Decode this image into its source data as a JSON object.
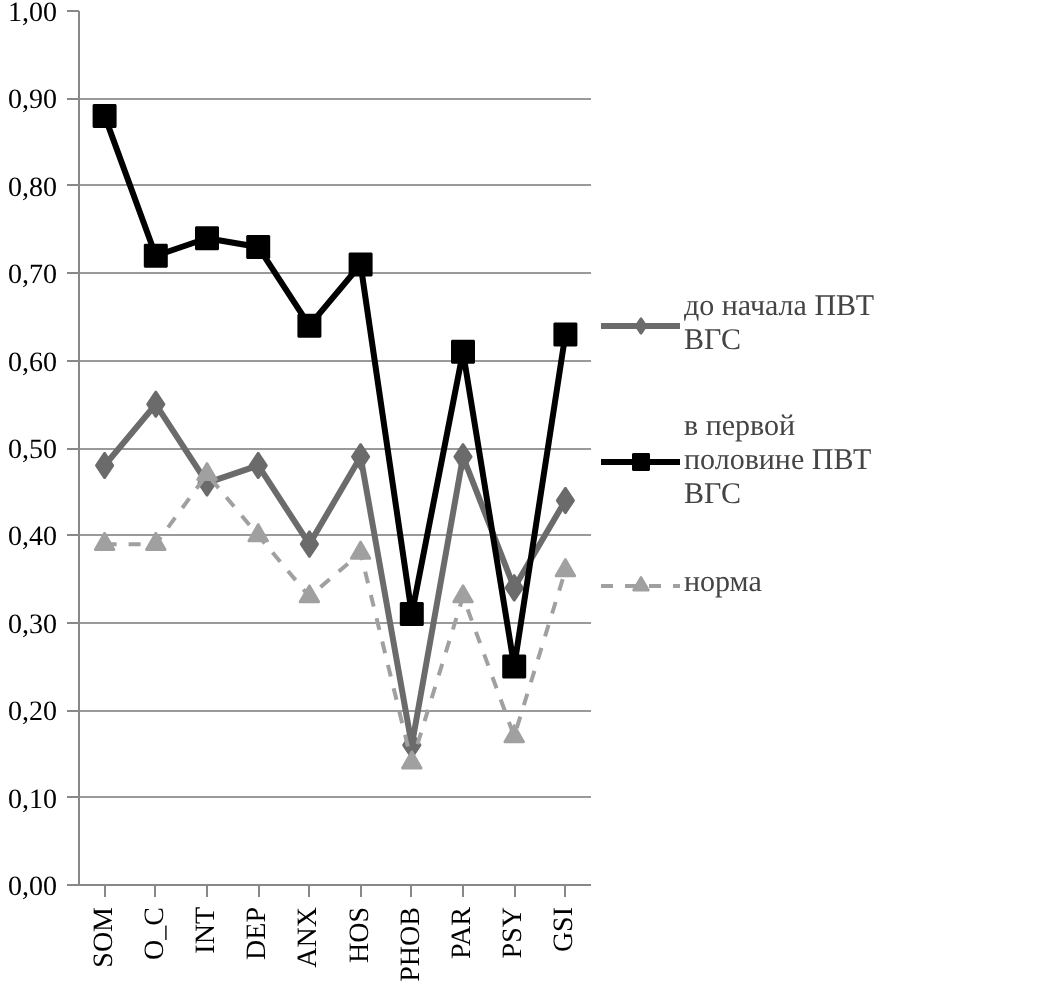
{
  "chart_data": {
    "type": "line",
    "categories": [
      "SOM",
      "O_C",
      "INT",
      "DEP",
      "ANX",
      "HOS",
      "PHOB",
      "PAR",
      "PSY",
      "GSI"
    ],
    "ylim": [
      0,
      1
    ],
    "yticks": [
      {
        "value": 0,
        "label": "0,00"
      },
      {
        "value": 0.1,
        "label": "0,10"
      },
      {
        "value": 0.2,
        "label": "0,20"
      },
      {
        "value": 0.3,
        "label": "0,30"
      },
      {
        "value": 0.4,
        "label": "0,40"
      },
      {
        "value": 0.5,
        "label": "0,50"
      },
      {
        "value": 0.6,
        "label": "0,60"
      },
      {
        "value": 0.7,
        "label": "0,70"
      },
      {
        "value": 0.8,
        "label": "0,80"
      },
      {
        "value": 0.9,
        "label": "0,90"
      },
      {
        "value": 1,
        "label": "1,00"
      }
    ],
    "grid": "y",
    "legend": "right",
    "series": [
      {
        "name": "до начала ПВТ ВГС",
        "color": "#6b6b6b",
        "marker": "diamond",
        "line_style": "solid",
        "values": [
          0.48,
          0.55,
          0.46,
          0.48,
          0.39,
          0.49,
          0.16,
          0.49,
          0.34,
          0.44
        ]
      },
      {
        "name": "в первой половине ПВТ ВГС",
        "color": "#000000",
        "marker": "square",
        "line_style": "solid",
        "values": [
          0.88,
          0.72,
          0.74,
          0.73,
          0.64,
          0.71,
          0.31,
          0.61,
          0.25,
          0.63
        ]
      },
      {
        "name": "норма",
        "color": "#a0a0a0",
        "marker": "triangle",
        "line_style": "dashed",
        "values": [
          0.39,
          0.39,
          0.47,
          0.4,
          0.33,
          0.38,
          0.14,
          0.33,
          0.17,
          0.36
        ]
      }
    ]
  }
}
